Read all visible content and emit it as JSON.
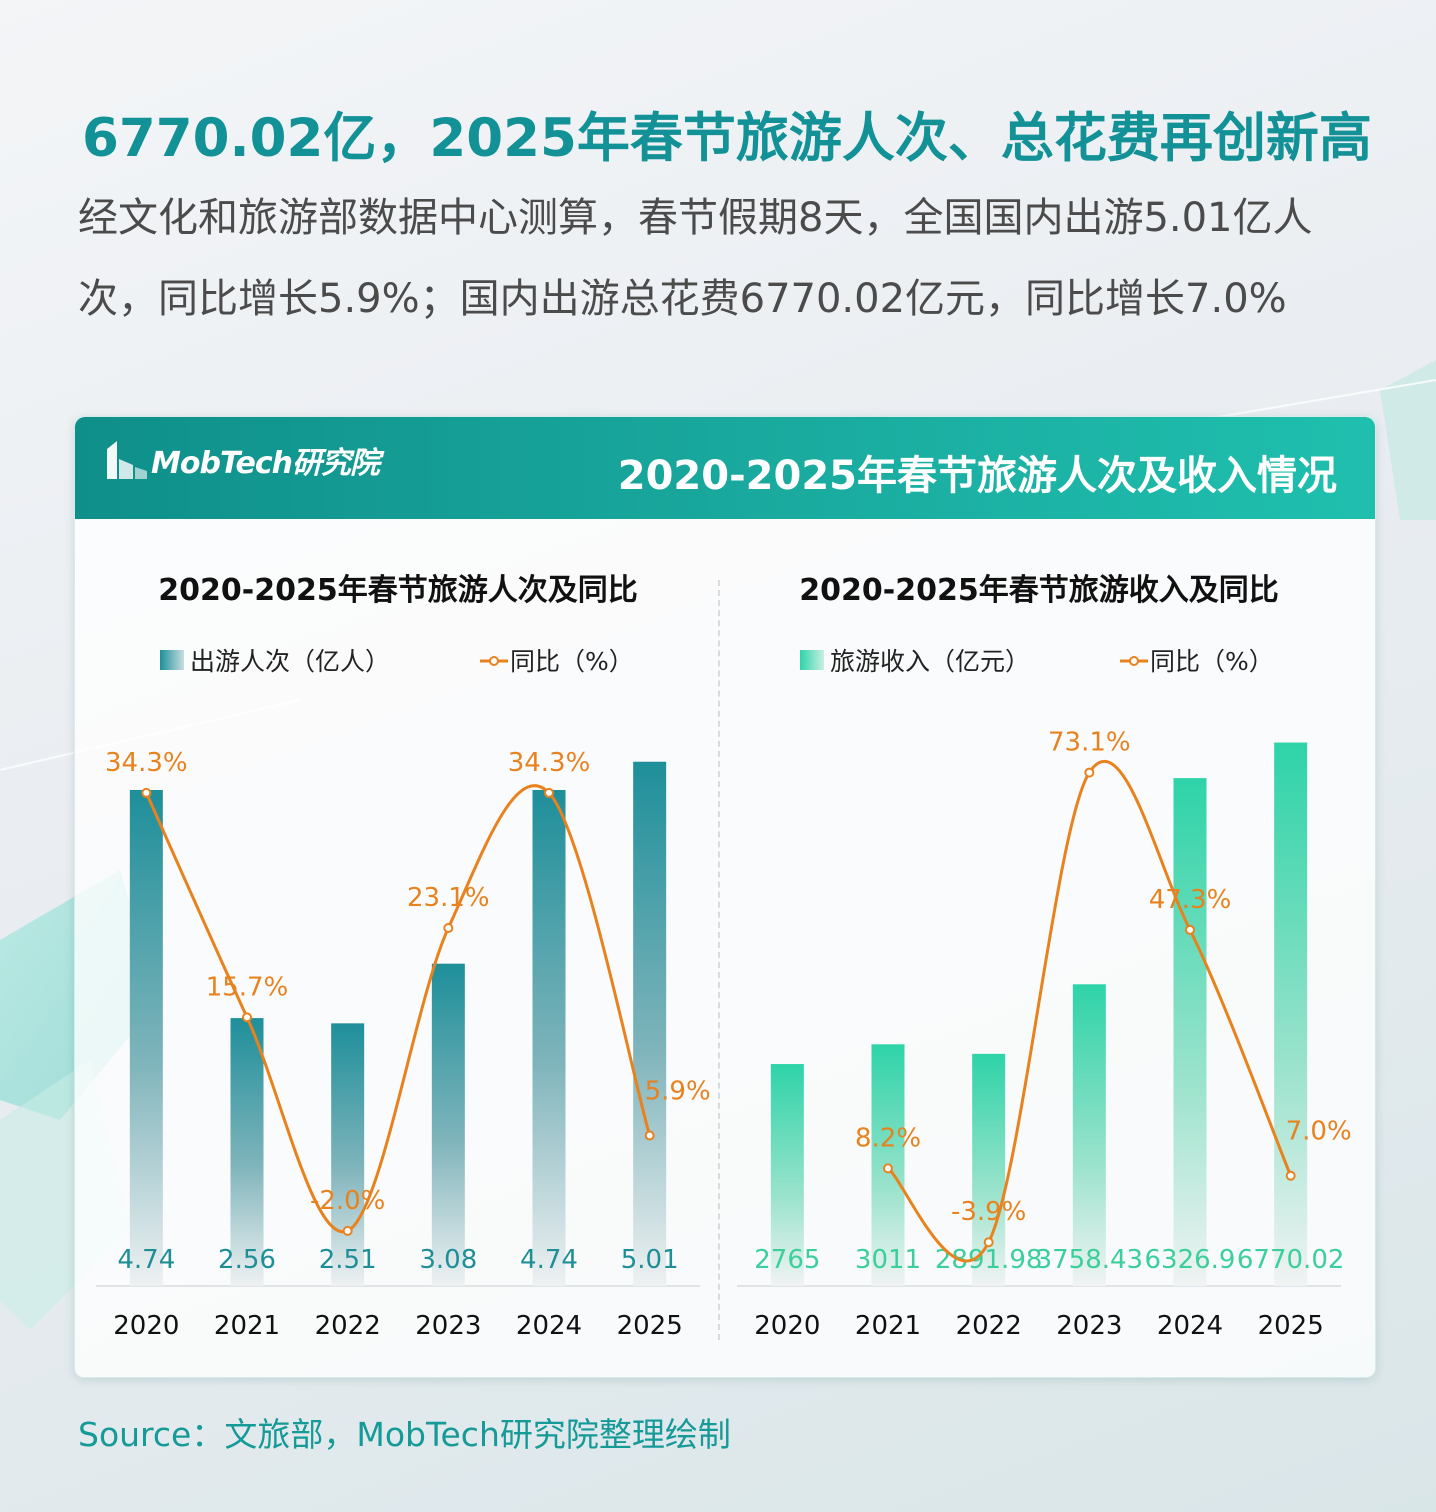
{
  "headline": "6770.02亿，2025年春节旅游人次、总花费再创新高",
  "intro": "经文化和旅游部数据中心测算，春节假期8天，全国国内出游5.01亿人次，同比增长5.9%；国内出游总花费6770.02亿元，同比增长7.0%",
  "card": {
    "logo_text": "MobTech研究院",
    "title": "2020-2025年春节旅游人次及收入情况"
  },
  "source": "Source：文旅部，MobTech研究院整理绘制",
  "colors": {
    "teal_bar": "#1e8f9a",
    "green_bar": "#2ed3a8",
    "line": "#e8821e",
    "bar_label_left": "#1f8f97",
    "bar_label_right": "#3ccf9c"
  },
  "chart_data": [
    {
      "type": "bar",
      "title": "2020-2025年春节旅游人次及同比",
      "categories": [
        "2020",
        "2021",
        "2022",
        "2023",
        "2024",
        "2025"
      ],
      "series": [
        {
          "name": "出游人次（亿人）",
          "type": "bar",
          "values": [
            4.74,
            2.56,
            2.51,
            3.08,
            4.74,
            5.01
          ],
          "labels": [
            "4.74",
            "2.56",
            "2.51",
            "3.08",
            "4.74",
            "5.01"
          ]
        },
        {
          "name": "同比（%）",
          "type": "line",
          "values": [
            34.3,
            15.7,
            -2.0,
            23.1,
            34.3,
            5.9
          ],
          "labels": [
            "34.3%",
            "15.7%",
            "-2.0%",
            "23.1%",
            "34.3%",
            "5.9%"
          ]
        }
      ],
      "bar_ylim": [
        0,
        5.6
      ],
      "line_ylim": [
        -4,
        42
      ],
      "legend_position": "top"
    },
    {
      "type": "bar",
      "title": "2020-2025年春节旅游收入及同比",
      "categories": [
        "2020",
        "2021",
        "2022",
        "2023",
        "2024",
        "2025"
      ],
      "series": [
        {
          "name": "旅游收入（亿元）",
          "type": "bar",
          "values": [
            2765,
            3011,
            2891.98,
            3758.43,
            6326.9,
            6770.02
          ],
          "labels": [
            "2765",
            "3011",
            "2891.98",
            "3758.43",
            "6326.9",
            "6770.02"
          ]
        },
        {
          "name": "同比（%）",
          "type": "line",
          "values": [
            null,
            8.2,
            -3.9,
            73.1,
            47.3,
            7.0
          ],
          "labels": [
            "",
            "8.2%",
            "-3.9%",
            "73.1%",
            "47.3%",
            "7.0%"
          ]
        }
      ],
      "bar_ylim": [
        0,
        7300
      ],
      "line_ylim": [
        -6,
        85
      ],
      "legend_position": "top"
    }
  ]
}
